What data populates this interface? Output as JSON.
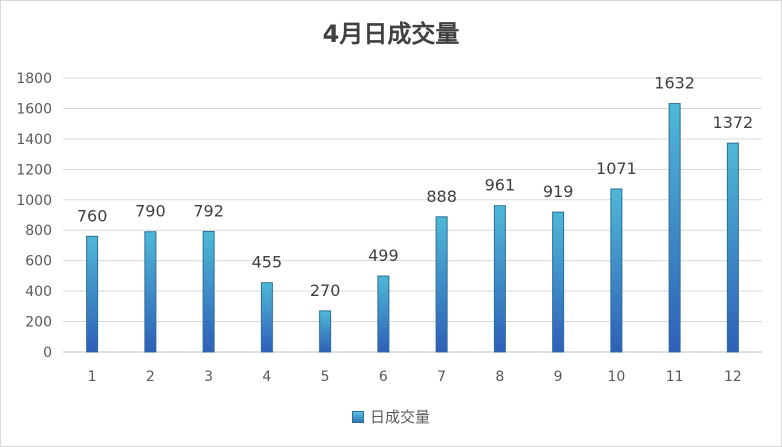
{
  "chart_data": {
    "type": "bar",
    "title": "4月日成交量",
    "categories": [
      "1",
      "2",
      "3",
      "4",
      "5",
      "6",
      "7",
      "8",
      "9",
      "10",
      "11",
      "12"
    ],
    "series": [
      {
        "name": "日成交量",
        "values": [
          760,
          790,
          792,
          455,
          270,
          499,
          888,
          961,
          919,
          1071,
          1632,
          1372
        ]
      }
    ],
    "yticks": [
      "0",
      "200",
      "400",
      "600",
      "800",
      "1000",
      "1200",
      "1400",
      "1600",
      "1800"
    ],
    "ylim": [
      0,
      1800
    ],
    "grid": true,
    "legend_position": "bottom",
    "data_labels": true,
    "colors": {
      "bar_top": "#4fb8d6",
      "bar_bottom": "#2f5fb8",
      "bar_stroke": "#2a6f9a",
      "grid": "#d9d9d9",
      "text": "#595959"
    }
  }
}
